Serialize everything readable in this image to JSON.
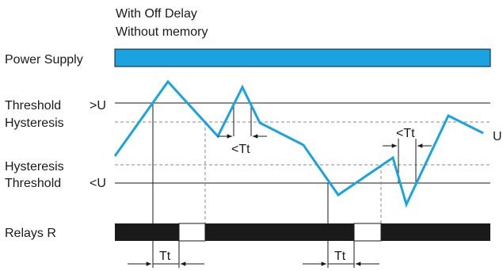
{
  "header": {
    "line1": "With Off Delay",
    "line2": "Without memory"
  },
  "labels": {
    "power_supply": "Power Supply",
    "threshold_upper": "Threshold",
    "upper_symbol": ">U",
    "hysteresis_upper": "Hysteresis",
    "hysteresis_lower": "Hysteresis",
    "threshold_lower": "Threshold",
    "lower_symbol": "<U",
    "signal": "U",
    "relays": "Relays R"
  },
  "timing_labels": {
    "short_upper": "<Tt",
    "short_lower": "<Tt",
    "delay_1": "Tt",
    "delay_2": "Tt"
  },
  "colors": {
    "power_bar": "#1aa3e0",
    "signal_line": "#1aa3e0",
    "relay_on": "#1a1a1a",
    "relay_off": "#ffffff",
    "lines": "#1a1a1a",
    "dashed": "#8a8a8a"
  }
}
